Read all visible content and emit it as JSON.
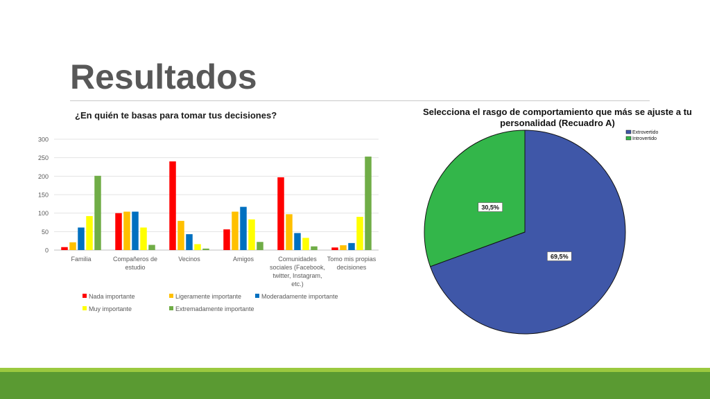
{
  "slide": {
    "title": "Resultados"
  },
  "colors": {
    "footer": "#5a9a32",
    "footer_accent": "#9bc93f"
  },
  "chart_data": [
    {
      "type": "bar",
      "title": "¿En quién te basas para tomar tus decisiones?",
      "categories": [
        [
          "Familia"
        ],
        [
          "Compañeros de",
          "estudio"
        ],
        [
          "Vecinos"
        ],
        [
          "Amigos"
        ],
        [
          "Comunidades",
          "sociales (Facebook,",
          "twitter, Instagram,",
          "etc.)"
        ],
        [
          "Tomo mis propias",
          "decisiones"
        ]
      ],
      "series": [
        {
          "name": "Nada importante",
          "color": "#ff0000",
          "values": [
            8,
            100,
            240,
            56,
            197,
            7
          ]
        },
        {
          "name": "Ligeramente importante",
          "color": "#ffc000",
          "values": [
            21,
            104,
            79,
            104,
            97,
            13
          ]
        },
        {
          "name": "Moderadamente importante",
          "color": "#0070c0",
          "values": [
            61,
            104,
            43,
            117,
            46,
            19
          ]
        },
        {
          "name": "Muy importante",
          "color": "#ffff00",
          "values": [
            92,
            61,
            16,
            83,
            33,
            90
          ]
        },
        {
          "name": "Extremadamente importante",
          "color": "#70ad47",
          "values": [
            201,
            14,
            4,
            22,
            10,
            253
          ]
        }
      ],
      "yticks": [
        "0",
        "50",
        "100",
        "150",
        "200",
        "250",
        "300"
      ],
      "ylim": [
        0,
        300
      ],
      "grid": true,
      "legend": "bottom"
    },
    {
      "type": "pie",
      "title": "Selecciona el rasgo de comportamiento que más se ajuste a tu personalidad (Recuadro A)",
      "labels": [
        "Extrovertido",
        "Introvertido"
      ],
      "values": [
        69.5,
        30.5
      ],
      "value_labels": [
        "69,5%",
        "30,5%"
      ],
      "colors": [
        "#3f57a8",
        "#33b64a"
      ],
      "legend": "top-right"
    }
  ]
}
